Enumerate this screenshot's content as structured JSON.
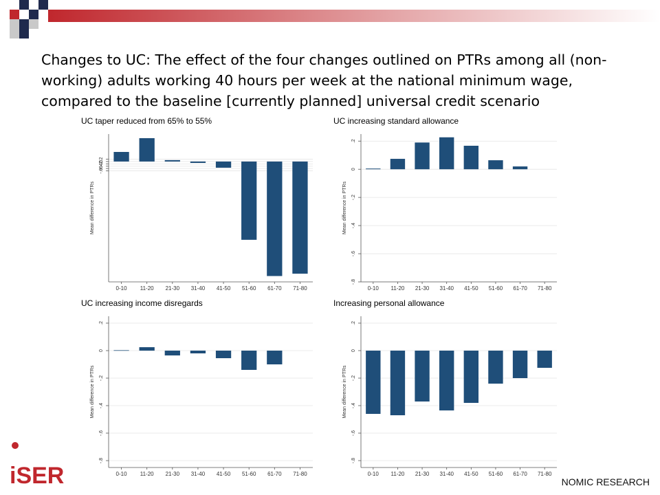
{
  "title": "Changes to UC: The effect of the four changes outlined on PTRs among all (non-working) adults working 40 hours per week at the national minimum wage, compared to the baseline [currently planned] universal credit scenario",
  "logos": {
    "left": "iSER",
    "right": "NOMIC RESEARCH"
  },
  "chart_data": [
    {
      "type": "bar",
      "title": "UC taper reduced from 65% to 55%",
      "ylabel": "Mean difference in PTRs",
      "categories": [
        "0-10",
        "11-20",
        "21-30",
        "31-40",
        "41-50",
        "51-60",
        "61-70",
        "71-80"
      ],
      "values": [
        0.82,
        2.0,
        0.12,
        -0.12,
        -0.53,
        -6.7,
        -9.8,
        -9.6
      ],
      "color": "#1f4e79",
      "ylim": [
        -10.3,
        2.35
      ],
      "yticks": [
        {
          "value": 0.2,
          "label": ".2"
        },
        0,
        {
          "value": -0.2,
          "label": "-.2"
        },
        {
          "value": -0.4,
          "label": "-.4"
        },
        {
          "value": -0.6,
          "label": "-.6"
        },
        {
          "value": -0.8,
          "label": "-.8"
        }
      ],
      "grid": true
    },
    {
      "type": "bar",
      "title": "UC increasing standard allowance",
      "ylabel": "Mean difference in PTRs",
      "categories": [
        "0-10",
        "11-20",
        "21-30",
        "31-40",
        "41-50",
        "51-60",
        "61-70",
        "71-80"
      ],
      "values": [
        0.005,
        0.074,
        0.19,
        0.227,
        0.167,
        0.064,
        0.02,
        null
      ],
      "color": "#1f4e79",
      "ylim": [
        -0.8,
        0.25
      ],
      "yticks": [
        {
          "value": 0.2,
          "label": ".2"
        },
        0,
        {
          "value": -0.2,
          "label": "-.2"
        },
        {
          "value": -0.4,
          "label": "-.4"
        },
        {
          "value": -0.6,
          "label": "-.6"
        },
        {
          "value": -0.8,
          "label": "-.8"
        }
      ],
      "grid": true
    },
    {
      "type": "bar",
      "title": "UC increasing income disregards",
      "ylabel": "Mean difference in PTRs",
      "categories": [
        "0-10",
        "11-20",
        "21-30",
        "31-40",
        "41-50",
        "51-60",
        "61-70",
        "71-80"
      ],
      "values": [
        0.003,
        0.025,
        -0.035,
        -0.02,
        -0.055,
        -0.14,
        -0.1,
        null
      ],
      "color": "#1f4e79",
      "ylim": [
        -0.85,
        0.25
      ],
      "yticks": [
        {
          "value": 0.2,
          "label": ".2"
        },
        0,
        {
          "value": -0.2,
          "label": "-.2"
        },
        {
          "value": -0.4,
          "label": "-.4"
        },
        {
          "value": -0.6,
          "label": "-.6"
        },
        {
          "value": -0.8,
          "label": "-.8"
        }
      ],
      "grid": true
    },
    {
      "type": "bar",
      "title": "Increasing personal allowance",
      "ylabel": "Mean difference in PTRs",
      "categories": [
        "0-10",
        "11-20",
        "21-30",
        "31-40",
        "41-50",
        "51-60",
        "61-70",
        "71-80"
      ],
      "values": [
        -0.46,
        -0.47,
        -0.37,
        -0.435,
        -0.38,
        -0.24,
        -0.2,
        -0.125
      ],
      "color": "#1f4e79",
      "ylim": [
        -0.85,
        0.25
      ],
      "yticks": [
        {
          "value": 0.2,
          "label": ".2"
        },
        0,
        {
          "value": -0.2,
          "label": "-.2"
        },
        {
          "value": -0.4,
          "label": "-.4"
        },
        {
          "value": -0.6,
          "label": "-.6"
        },
        {
          "value": -0.8,
          "label": "-.8"
        }
      ],
      "grid": true
    }
  ]
}
